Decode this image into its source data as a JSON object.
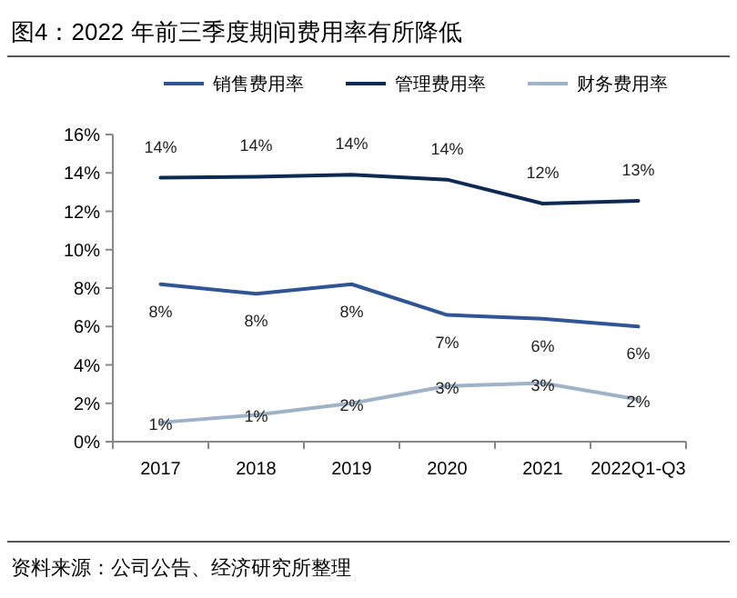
{
  "chart_data": {
    "type": "line",
    "title": "图4：2022 年前三季度期间费用率有所降低",
    "categories": [
      "2017",
      "2018",
      "2019",
      "2020",
      "2021",
      "2022Q1-Q3"
    ],
    "series": [
      {
        "name": "销售费用率",
        "color": "#2f5597",
        "values": [
          8.2,
          7.7,
          8.2,
          6.6,
          6.4,
          6.0
        ],
        "value_labels": [
          "8%",
          "8%",
          "8%",
          "7%",
          "6%",
          "6%"
        ]
      },
      {
        "name": "管理费用率",
        "color": "#0d2a55",
        "values": [
          13.75,
          13.8,
          13.9,
          13.65,
          12.4,
          12.55
        ],
        "value_labels": [
          "14%",
          "14%",
          "14%",
          "14%",
          "12%",
          "13%"
        ]
      },
      {
        "name": "财务费用率",
        "color": "#9fb3c8",
        "values": [
          1.0,
          1.4,
          2.0,
          2.9,
          3.05,
          2.2
        ],
        "value_labels": [
          "1%",
          "1%",
          "2%",
          "3%",
          "3%",
          "2%"
        ]
      }
    ],
    "ylim": [
      0,
      16
    ],
    "yticks": [
      {
        "value": 0,
        "label": "0%"
      },
      {
        "value": 2,
        "label": "2%"
      },
      {
        "value": 4,
        "label": "4%"
      },
      {
        "value": 6,
        "label": "6%"
      },
      {
        "value": 8,
        "label": "8%"
      },
      {
        "value": 10,
        "label": "10%"
      },
      {
        "value": 12,
        "label": "12%"
      },
      {
        "value": 14,
        "label": "14%"
      },
      {
        "value": 16,
        "label": "16%"
      }
    ],
    "legend": "top",
    "marker": "none",
    "line_style": "solid",
    "grid": false,
    "annotations": [
      "资料来源：公司公告、经济研究所整理"
    ]
  }
}
